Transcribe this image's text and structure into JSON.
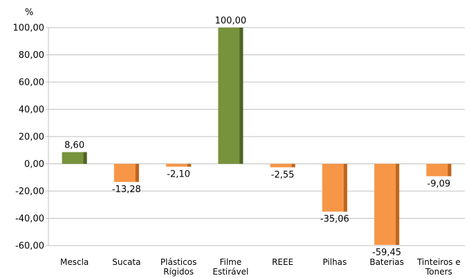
{
  "chart_data": {
    "type": "bar",
    "ylabel": "%",
    "ylim": [
      -60,
      100
    ],
    "yticks": [
      "100,00",
      "80,00",
      "60,00",
      "40,00",
      "20,00",
      "0,00",
      "-20,00",
      "-40,00",
      "-60,00"
    ],
    "grid": true,
    "legend": "none",
    "categories": [
      [
        "Mescla"
      ],
      [
        "Sucata"
      ],
      [
        "Plásticos",
        "Rígidos"
      ],
      [
        "Filme",
        "Estirável"
      ],
      [
        "REEE"
      ],
      [
        "Pilhas"
      ],
      [
        "Baterias"
      ],
      [
        "Tinteiros e",
        "Toners"
      ]
    ],
    "values": [
      8.6,
      -13.28,
      -2.1,
      100.0,
      -2.55,
      -35.06,
      -59.45,
      -9.09
    ],
    "data_labels": [
      "8,60",
      "-13,28",
      "-2,10",
      "100,00",
      "-2,55",
      "-35,06",
      "-59,45",
      "-9,09"
    ],
    "colors": {
      "positive": "#77933C",
      "positive_side": "#4F6228",
      "negative": "#F79646",
      "negative_side": "#C0651E"
    }
  }
}
